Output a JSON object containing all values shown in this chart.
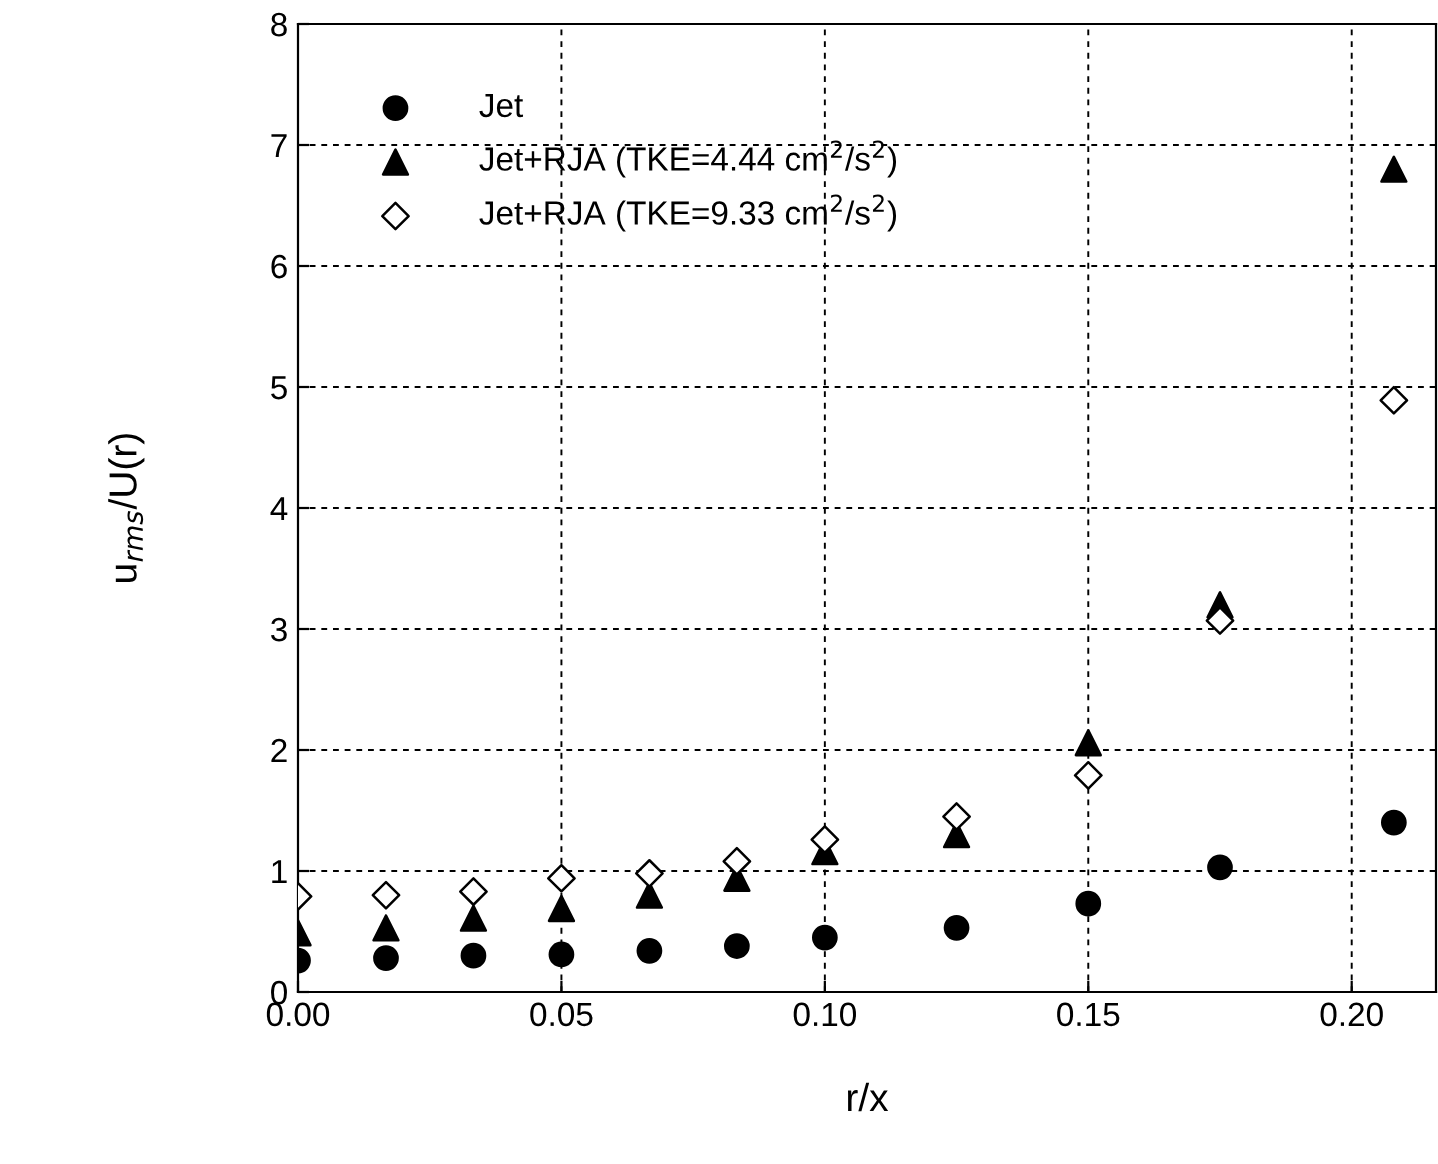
{
  "chart_data": {
    "type": "scatter",
    "xlabel": "r/x",
    "ylabel": "u$_{rms}$/U(r)",
    "xlim": [
      0,
      0.216
    ],
    "ylim": [
      0,
      8
    ],
    "xticks": [
      {
        "value": 0,
        "label": "0.00"
      },
      {
        "value": 0.05,
        "label": "0.05"
      },
      {
        "value": 0.1,
        "label": "0.10"
      },
      {
        "value": 0.15,
        "label": "0.15"
      },
      {
        "value": 0.2,
        "label": "0.20"
      }
    ],
    "yticks": [
      0,
      1,
      2,
      3,
      4,
      5,
      6,
      7,
      8
    ],
    "grid": true,
    "legend": "top left",
    "x": [
      0,
      0.0167,
      0.0333,
      0.05,
      0.0667,
      0.0833,
      0.1,
      0.125,
      0.15,
      0.175,
      0.208
    ],
    "series": [
      {
        "name": "Jet",
        "color": "#000000",
        "marker": "circle",
        "values": [
          0.26,
          0.28,
          0.3,
          0.31,
          0.34,
          0.38,
          0.45,
          0.53,
          0.73,
          1.03,
          1.4
        ]
      },
      {
        "name": "Jet+RJA (TKE=4.44 cm$^{2}$/s$^{2}$)",
        "color": "#000000",
        "marker": "triangle",
        "values": [
          0.49,
          0.53,
          0.61,
          0.69,
          0.8,
          0.94,
          1.16,
          1.3,
          2.06,
          3.2,
          6.8
        ]
      },
      {
        "name": "Jet+RJA (TKE=9.33 cm$^{2}$/s$^{2}$)",
        "color": "#000000",
        "marker": "diamond",
        "values": [
          0.79,
          0.8,
          0.83,
          0.94,
          0.98,
          1.08,
          1.26,
          1.45,
          1.79,
          3.07,
          4.89
        ]
      }
    ]
  }
}
